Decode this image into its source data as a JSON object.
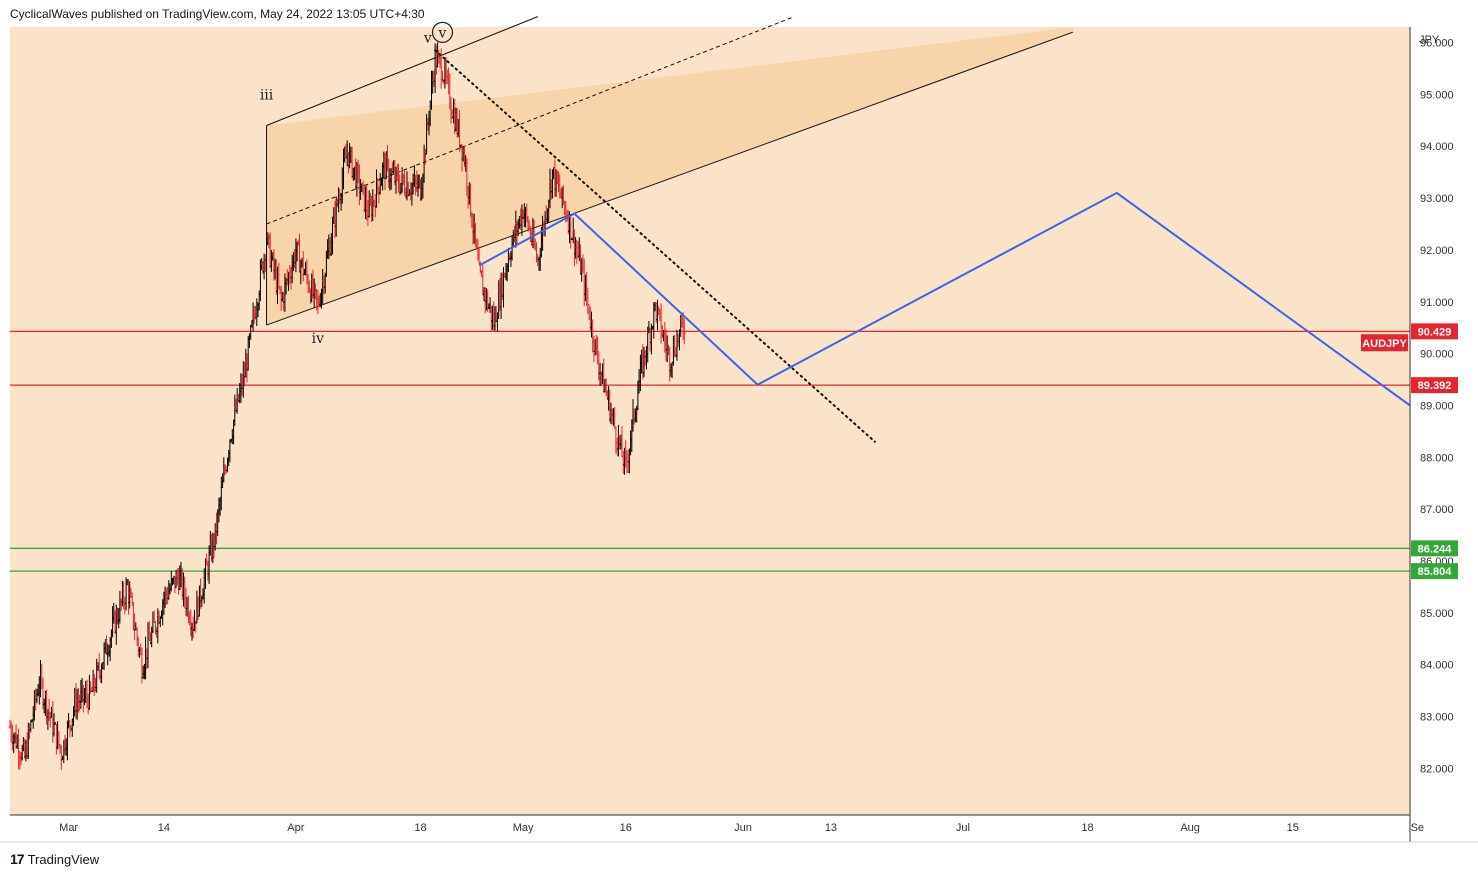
{
  "header": {
    "published": "CyclicalWaves published on TradingView.com, May 24, 2022 13:05 UTC+4:30"
  },
  "footer": {
    "brand": "TradingView",
    "logo_glyph": "17"
  },
  "colors": {
    "background": "#fae3c9",
    "channel_fill": "#f7d3a8",
    "resistance": "#e8242e",
    "support": "#37a63a",
    "projection": "#3767e8",
    "candle_up": "#000000",
    "candle_down": "#e8242e"
  },
  "chart_data": {
    "type": "candlestick",
    "symbol": "AUDJPY",
    "currency": "JPY",
    "x_ticks": [
      {
        "label": "Mar",
        "date": "2022-03-01"
      },
      {
        "label": "14",
        "date": "2022-03-14"
      },
      {
        "label": "Apr",
        "date": "2022-04-01"
      },
      {
        "label": "18",
        "date": "2022-04-18"
      },
      {
        "label": "May",
        "date": "2022-05-02"
      },
      {
        "label": "16",
        "date": "2022-05-16"
      },
      {
        "label": "Jun",
        "date": "2022-06-01"
      },
      {
        "label": "13",
        "date": "2022-06-13"
      },
      {
        "label": "Jul",
        "date": "2022-07-01"
      },
      {
        "label": "18",
        "date": "2022-07-18"
      },
      {
        "label": "Aug",
        "date": "2022-08-01"
      },
      {
        "label": "15",
        "date": "2022-08-15"
      },
      {
        "label": "Se",
        "date": "2022-09-01"
      }
    ],
    "x_range": [
      "2022-02-21",
      "2022-08-31"
    ],
    "y_range": [
      81.1,
      96.3
    ],
    "y_ticks": [
      "96.000",
      "95.000",
      "94.000",
      "93.000",
      "92.000",
      "91.000",
      "90.000",
      "89.000",
      "88.000",
      "87.000",
      "86.000",
      "85.000",
      "84.000",
      "83.000",
      "82.000"
    ],
    "price_path": [
      [
        "2022-02-21",
        82.8
      ],
      [
        "2022-02-23",
        82.2
      ],
      [
        "2022-02-25",
        83.7
      ],
      [
        "2022-02-28",
        82.3
      ],
      [
        "2022-03-02",
        83.3
      ],
      [
        "2022-03-04",
        83.4
      ],
      [
        "2022-03-07",
        84.7
      ],
      [
        "2022-03-09",
        85.5
      ],
      [
        "2022-03-11",
        84.0
      ],
      [
        "2022-03-14",
        85.3
      ],
      [
        "2022-03-16",
        85.7
      ],
      [
        "2022-03-18",
        84.8
      ],
      [
        "2022-03-21",
        86.5
      ],
      [
        "2022-03-23",
        88.4
      ],
      [
        "2022-03-25",
        89.6
      ],
      [
        "2022-03-28",
        92.2
      ],
      [
        "2022-03-30",
        91.0
      ],
      [
        "2022-04-01",
        92.0
      ],
      [
        "2022-04-04",
        90.9
      ],
      [
        "2022-04-06",
        92.4
      ],
      [
        "2022-04-08",
        93.9
      ],
      [
        "2022-04-11",
        92.7
      ],
      [
        "2022-04-13",
        93.6
      ],
      [
        "2022-04-15",
        93.3
      ],
      [
        "2022-04-18",
        93.2
      ],
      [
        "2022-04-20",
        95.7
      ],
      [
        "2022-04-21",
        95.5
      ],
      [
        "2022-04-24",
        93.8
      ],
      [
        "2022-04-26",
        91.5
      ],
      [
        "2022-04-28",
        90.6
      ],
      [
        "2022-04-30",
        91.9
      ],
      [
        "2022-05-02",
        92.8
      ],
      [
        "2022-05-04",
        91.8
      ],
      [
        "2022-05-06",
        93.5
      ],
      [
        "2022-05-08",
        92.7
      ],
      [
        "2022-05-10",
        91.6
      ],
      [
        "2022-05-12",
        90.0
      ],
      [
        "2022-05-15",
        88.3
      ],
      [
        "2022-05-16",
        87.8
      ],
      [
        "2022-05-18",
        89.6
      ],
      [
        "2022-05-20",
        90.9
      ],
      [
        "2022-05-22",
        89.9
      ],
      [
        "2022-05-24",
        90.6
      ]
    ],
    "series": [
      {
        "name": "90.429",
        "kind": "horizontal",
        "y": 90.429,
        "color": "#e8242e"
      },
      {
        "name": "89.392",
        "kind": "horizontal",
        "y": 89.392,
        "color": "#e8242e"
      },
      {
        "name": "86.244",
        "kind": "horizontal",
        "y": 86.244,
        "color": "#37a63a"
      },
      {
        "name": "85.804",
        "kind": "horizontal",
        "y": 85.804,
        "color": "#37a63a"
      }
    ],
    "projection_path": [
      [
        "2022-04-26",
        91.7
      ],
      [
        "2022-05-09",
        92.7
      ],
      [
        "2022-06-03",
        89.4
      ],
      [
        "2022-07-22",
        93.1
      ],
      [
        "2022-08-31",
        89.0
      ]
    ],
    "trendline_dotted": [
      [
        "2022-04-20",
        95.85
      ],
      [
        "2022-06-19",
        88.3
      ]
    ],
    "channel": {
      "lower": [
        [
          "2022-03-28",
          90.55
        ],
        [
          "2022-07-16",
          96.2
        ]
      ],
      "upper": [
        [
          "2022-03-28",
          94.4
        ],
        [
          "2022-05-04",
          96.5
        ]
      ],
      "mid": [
        [
          "2022-03-28",
          92.5
        ],
        [
          "2022-06-08",
          96.5
        ]
      ],
      "box_start": "2022-03-28"
    },
    "wave_labels": [
      {
        "text": "iii",
        "date": "2022-03-28",
        "y": 94.9,
        "circled": false
      },
      {
        "text": "iv",
        "date": "2022-04-04",
        "y": 90.2,
        "circled": false
      },
      {
        "text": "v",
        "date": "2022-04-19",
        "y": 96.0,
        "circled": false
      },
      {
        "text": "v",
        "date": "2022-04-21",
        "y": 96.1,
        "circled": true
      }
    ],
    "price_labels": [
      {
        "text": "90.429",
        "y": 90.429,
        "color": "#e8242e"
      },
      {
        "text": "89.392",
        "y": 89.392,
        "color": "#e8242e"
      },
      {
        "text": "86.244",
        "y": 86.244,
        "color": "#37a63a"
      },
      {
        "text": "85.804",
        "y": 85.804,
        "color": "#37a63a"
      }
    ],
    "symbol_label": {
      "text": "AUDJPY",
      "y": 90.2
    }
  }
}
